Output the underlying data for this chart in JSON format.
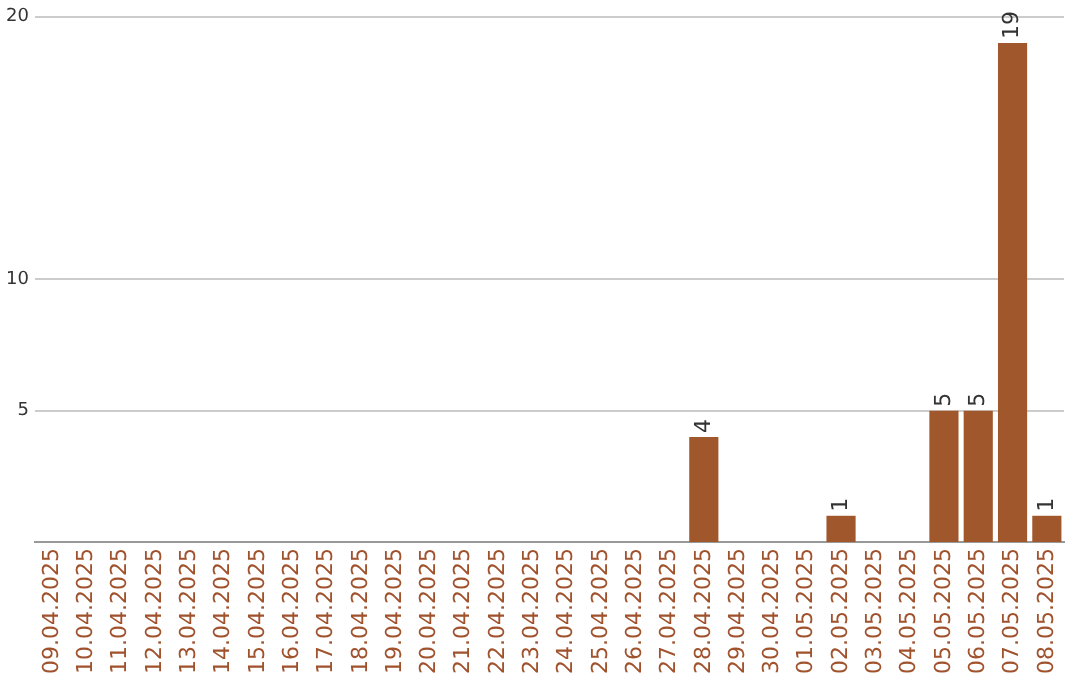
{
  "chart_data": {
    "type": "bar",
    "categories": [
      "09.04.2025",
      "10.04.2025",
      "11.04.2025",
      "12.04.2025",
      "13.04.2025",
      "14.04.2025",
      "15.04.2025",
      "16.04.2025",
      "17.04.2025",
      "18.04.2025",
      "19.04.2025",
      "20.04.2025",
      "21.04.2025",
      "22.04.2025",
      "23.04.2025",
      "24.04.2025",
      "25.04.2025",
      "26.04.2025",
      "27.04.2025",
      "28.04.2025",
      "29.04.2025",
      "30.04.2025",
      "01.05.2025",
      "02.05.2025",
      "03.05.2025",
      "04.05.2025",
      "05.05.2025",
      "06.05.2025",
      "07.05.2025",
      "08.05.2025"
    ],
    "values": [
      0,
      0,
      0,
      0,
      0,
      0,
      0,
      0,
      0,
      0,
      0,
      0,
      0,
      0,
      0,
      0,
      0,
      0,
      0,
      4,
      0,
      0,
      0,
      1,
      0,
      0,
      5,
      5,
      19,
      1
    ],
    "value_labels": [
      null,
      null,
      null,
      null,
      null,
      null,
      null,
      null,
      null,
      null,
      null,
      null,
      null,
      null,
      null,
      null,
      null,
      null,
      null,
      "4",
      null,
      null,
      null,
      "1",
      null,
      null,
      "5",
      "5",
      "19",
      "1"
    ],
    "color": "#a0572b",
    "ylim": [
      0,
      20
    ],
    "yticks": [
      5,
      10,
      20
    ],
    "grid": "y",
    "legend": false
  }
}
